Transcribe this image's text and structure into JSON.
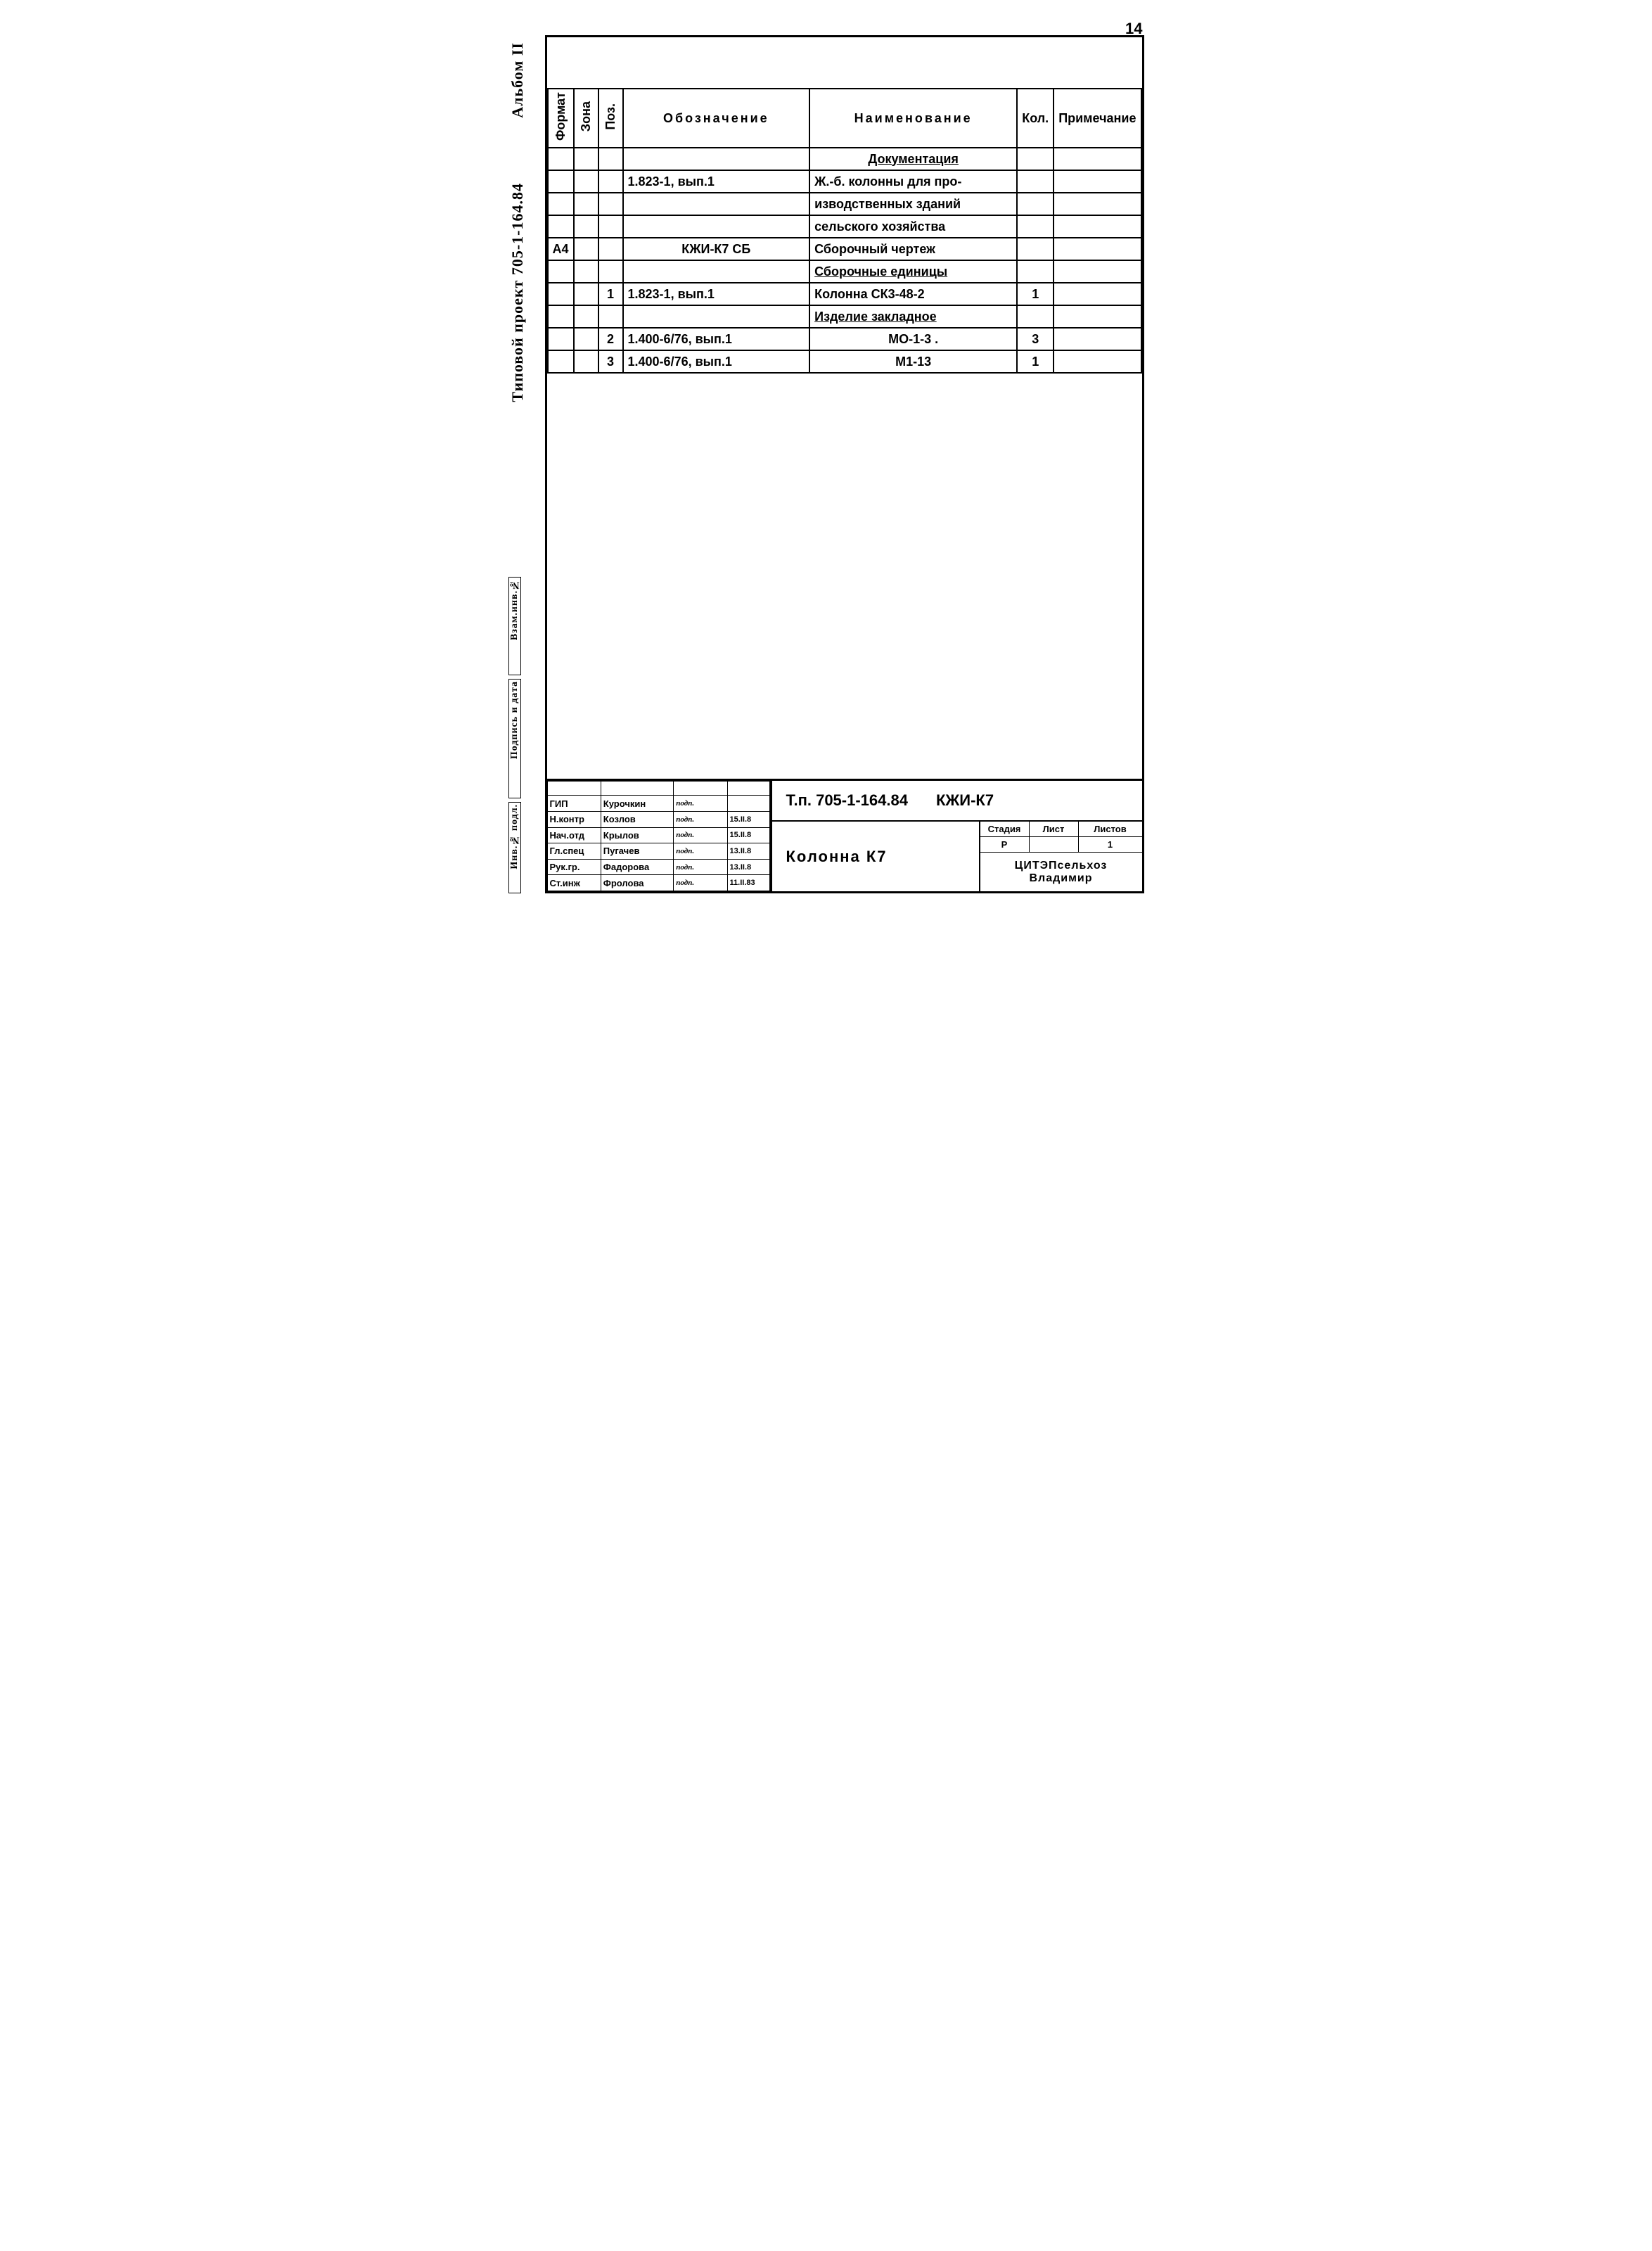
{
  "page_number": "14",
  "sidebar": {
    "album": "Альбом II",
    "project": "Типовой проект 705-1-164.84",
    "zam_inv": "Взам.инв.№",
    "podpis_data": "Подпись и дата",
    "inv_pod": "Инв.№ подл."
  },
  "spec_headers": {
    "format": "Формат",
    "zona": "Зона",
    "poz": "Поз.",
    "oboznachenie": "Обозначение",
    "naimenovanie": "Наименование",
    "kol": "Кол.",
    "primechanie": "Примечание"
  },
  "spec_rows": [
    {
      "format": "",
      "zona": "",
      "poz": "",
      "oboz": "",
      "naim": "Документация",
      "kol": "",
      "prim": "",
      "underline": true,
      "center_naim": true
    },
    {
      "format": "",
      "zona": "",
      "poz": "",
      "oboz": "1.823-1, вып.1",
      "naim": "Ж.-б. колонны для про-",
      "kol": "",
      "prim": ""
    },
    {
      "format": "",
      "zona": "",
      "poz": "",
      "oboz": "",
      "naim": "изводственных зданий",
      "kol": "",
      "prim": ""
    },
    {
      "format": "",
      "zona": "",
      "poz": "",
      "oboz": "",
      "naim": "сельского хозяйства",
      "kol": "",
      "prim": ""
    },
    {
      "format": "А4",
      "zona": "",
      "poz": "",
      "oboz": "КЖИ-К7 СБ",
      "naim": "Сборочный чертеж",
      "kol": "",
      "prim": "",
      "center_oboz": true
    },
    {
      "format": "",
      "zona": "",
      "poz": "",
      "oboz": "",
      "naim": "Сборочные единицы",
      "kol": "",
      "prim": "",
      "underline": true
    },
    {
      "format": "",
      "zona": "",
      "poz": "1",
      "oboz": "1.823-1, вып.1",
      "naim": "Колонна  СК3-48-2",
      "kol": "1",
      "prim": ""
    },
    {
      "format": "",
      "zona": "",
      "poz": "",
      "oboz": "",
      "naim": "Изделие закладное",
      "kol": "",
      "prim": "",
      "underline": true
    },
    {
      "format": "",
      "zona": "",
      "poz": "2",
      "oboz": "1.400-6/76, вып.1",
      "naim": "МО-1-3  .",
      "kol": "3",
      "prim": "",
      "center_naim": true
    },
    {
      "format": "",
      "zona": "",
      "poz": "3",
      "oboz": "1.400-6/76, вып.1",
      "naim": "М1-13",
      "kol": "1",
      "prim": "",
      "center_naim": true
    }
  ],
  "titleblock": {
    "doc_code": "Т.п. 705-1-164.84",
    "doc_suffix": "КЖИ-К7",
    "title": "Колонна К7",
    "signatures": [
      {
        "role": "ГИП",
        "name": "Курочкин",
        "sign": "подп.",
        "date": ""
      },
      {
        "role": "Н.контр",
        "name": "Козлов",
        "sign": "подп.",
        "date": "15.II.8"
      },
      {
        "role": "Нач.отд",
        "name": "Крылов",
        "sign": "подп.",
        "date": "15.II.8"
      },
      {
        "role": "Гл.спец",
        "name": "Пугачев",
        "sign": "подп.",
        "date": "13.II.8"
      },
      {
        "role": "Рук.гр.",
        "name": "Фадорова",
        "sign": "подп.",
        "date": "13.II.8"
      },
      {
        "role": "Ст.инж",
        "name": "Фролова",
        "sign": "подп.",
        "date": "11.II.83"
      }
    ],
    "meta": {
      "stadia_h": "Стадия",
      "list_h": "Лист",
      "listov_h": "Листов",
      "stadia": "Р",
      "list": "",
      "listov": "1"
    },
    "org_line1": "ЦИТЭПсельхоз",
    "org_line2": "Владимир"
  }
}
